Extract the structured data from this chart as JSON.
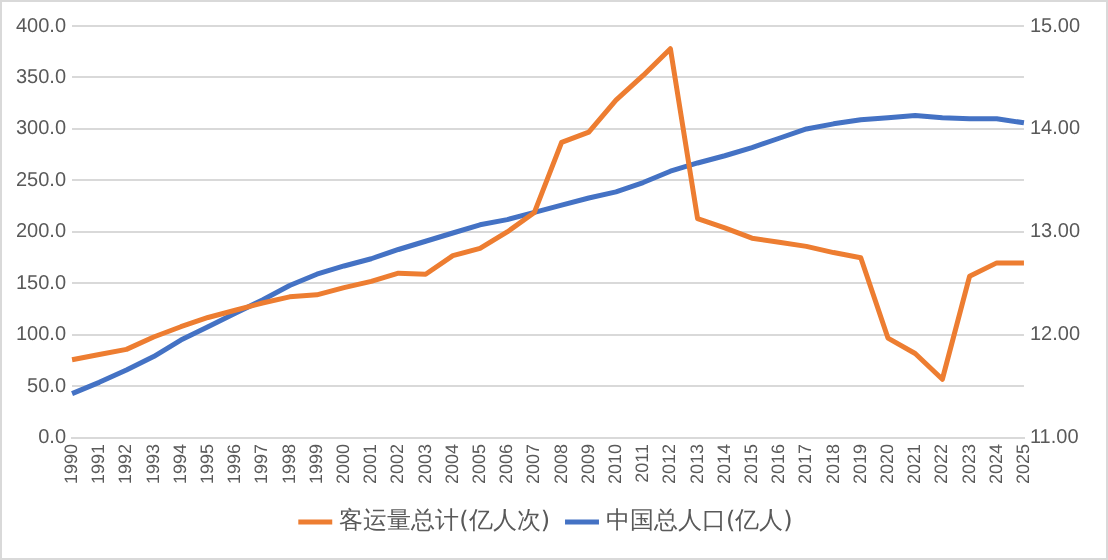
{
  "chart_data": {
    "type": "line",
    "categories": [
      "1990",
      "1991",
      "1992",
      "1993",
      "1994",
      "1995",
      "1996",
      "1997",
      "1998",
      "1999",
      "2000",
      "2001",
      "2002",
      "2003",
      "2004",
      "2005",
      "2006",
      "2007",
      "2008",
      "2009",
      "2010",
      "2011",
      "2012",
      "2013",
      "2014",
      "2015",
      "2016",
      "2017",
      "2018",
      "2019",
      "2020",
      "2021",
      "2022",
      "2023",
      "2024",
      "2025"
    ],
    "series": [
      {
        "name": "客运量总计(亿人次)",
        "color": "#ed7d31",
        "values": [
          76,
          81,
          86,
          98,
          108,
          117,
          124,
          131,
          137,
          139,
          146,
          152,
          160,
          159,
          177,
          184,
          200,
          219,
          287,
          297,
          328,
          352,
          378,
          213,
          204,
          194,
          190,
          186,
          180,
          175,
          97,
          82,
          57,
          157,
          170,
          170
        ]
      },
      {
        "name": "中国总人口(亿人)",
        "color": "#4472c4",
        "axis": "y2",
        "values": [
          11.43,
          11.54,
          11.66,
          11.79,
          11.95,
          12.08,
          12.21,
          12.34,
          12.48,
          12.59,
          12.67,
          12.74,
          12.83,
          12.91,
          12.99,
          13.07,
          13.12,
          13.19,
          13.26,
          13.33,
          13.39,
          13.48,
          13.59,
          13.67,
          13.74,
          13.82,
          13.91,
          14.0,
          14.05,
          14.09,
          14.11,
          14.13,
          14.11,
          14.1,
          14.1,
          14.06
        ]
      }
    ],
    "ylim": [
      0,
      400
    ],
    "yticks": [
      {
        "value": 0,
        "label": "0.0"
      },
      {
        "value": 50,
        "label": "50.0"
      },
      {
        "value": 100,
        "label": "100.0"
      },
      {
        "value": 150,
        "label": "150.0"
      },
      {
        "value": 200,
        "label": "200.0"
      },
      {
        "value": 250,
        "label": "250.0"
      },
      {
        "value": 300,
        "label": "300.0"
      },
      {
        "value": 350,
        "label": "350.0"
      },
      {
        "value": 400,
        "label": "400.0"
      }
    ],
    "y2lim": [
      11,
      15
    ],
    "y2ticks": [
      {
        "value": 11,
        "label": "11.00"
      },
      {
        "value": 12,
        "label": "12.00"
      },
      {
        "value": 13,
        "label": "13.00"
      },
      {
        "value": 14,
        "label": "14.00"
      },
      {
        "value": 15,
        "label": "15.00"
      }
    ],
    "grid": "y",
    "legend": "bottom",
    "marker": "none",
    "line_style": "solid"
  }
}
